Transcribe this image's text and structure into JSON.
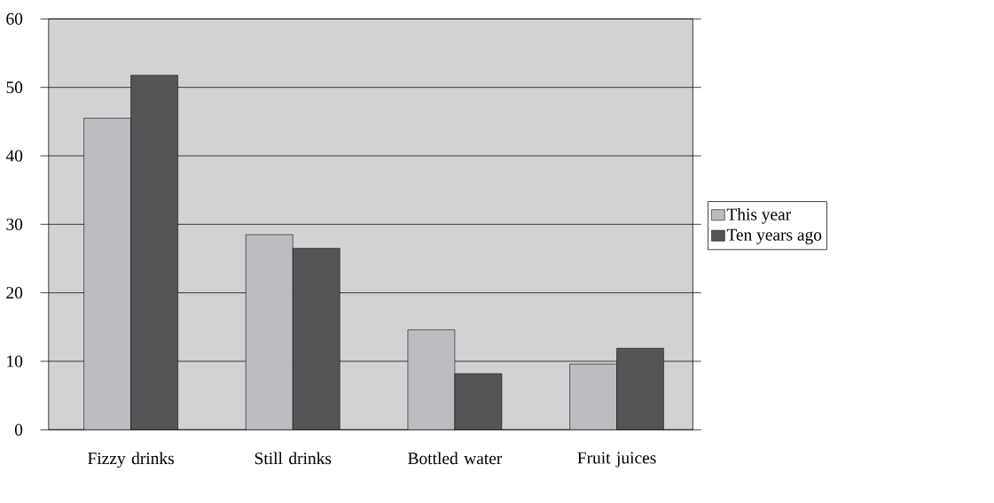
{
  "chart_data": {
    "type": "bar",
    "categories": [
      "Fizzy drinks",
      "Still drinks",
      "Bottled water",
      "Fruit juices"
    ],
    "series": [
      {
        "name": "This year",
        "color": "#bbbcc0",
        "values": [
          45.5,
          28.5,
          14.6,
          9.6
        ]
      },
      {
        "name": "Ten years ago",
        "color": "#545557",
        "values": [
          51.8,
          26.5,
          8.2,
          11.9
        ]
      }
    ],
    "ylim": [
      0,
      60
    ],
    "yticks": [
      0,
      10,
      20,
      30,
      40,
      50,
      60
    ],
    "grid": "y",
    "legend": "right"
  }
}
